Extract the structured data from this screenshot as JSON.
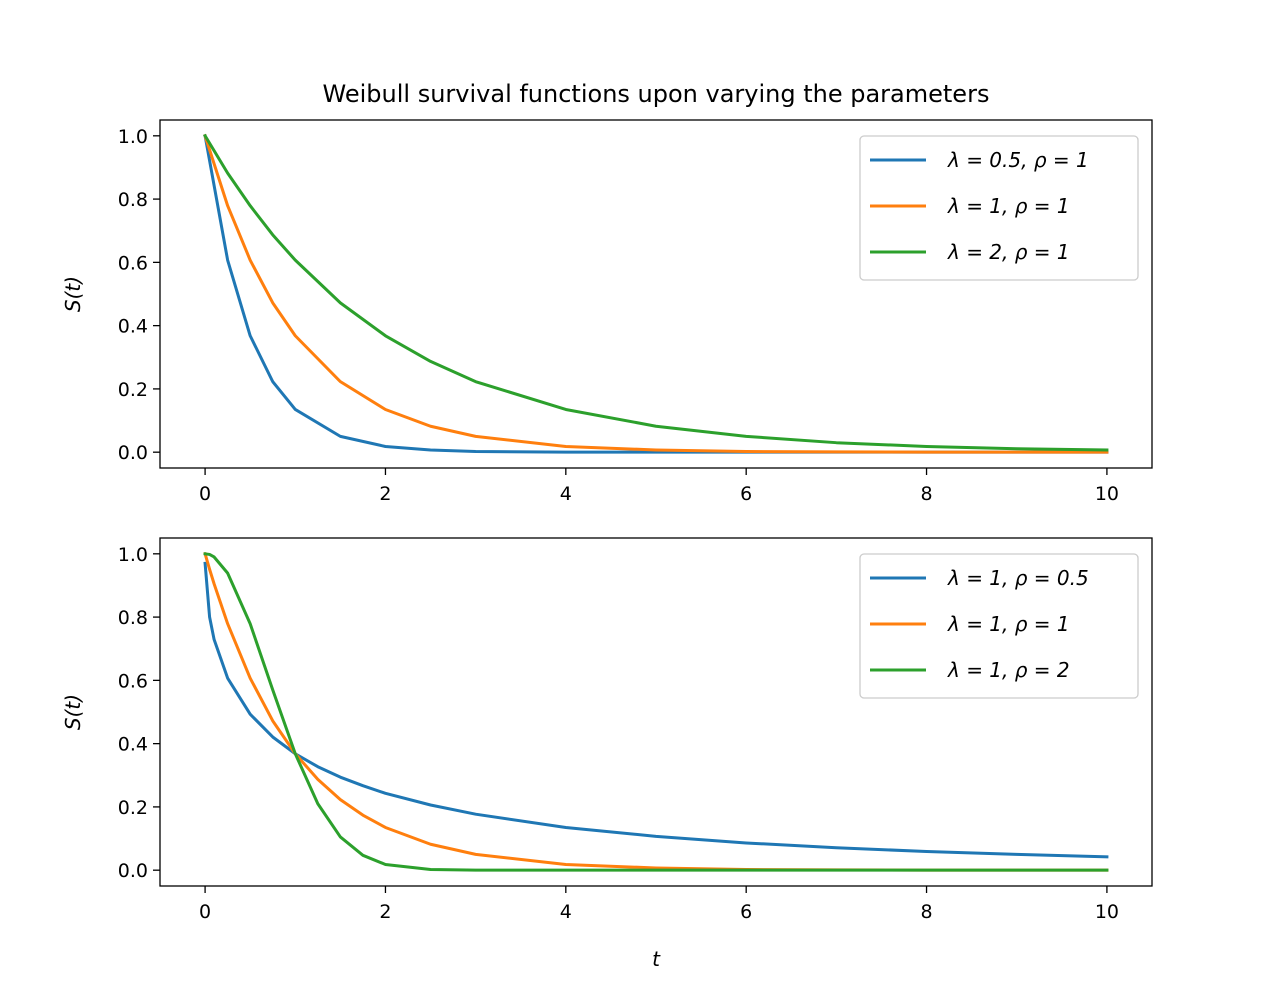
{
  "chart_data": [
    {
      "type": "line",
      "title": "Weibull survival functions upon varying the parameters",
      "xlabel": "",
      "ylabel": "S(t)",
      "xlim": [
        -0.5,
        10.5
      ],
      "ylim": [
        -0.05,
        1.05
      ],
      "xticks": [
        0,
        2,
        4,
        6,
        8,
        10
      ],
      "xtick_labels": [
        "0",
        "2",
        "4",
        "6",
        "8",
        "10"
      ],
      "yticks": [
        0.0,
        0.2,
        0.4,
        0.6,
        0.8,
        1.0
      ],
      "ytick_labels": [
        "0.0",
        "0.2",
        "0.4",
        "0.6",
        "0.8",
        "1.0"
      ],
      "grid": false,
      "legend_position": "top-right",
      "x": [
        0,
        0.25,
        0.5,
        0.75,
        1,
        1.5,
        2,
        2.5,
        3,
        4,
        5,
        6,
        7,
        8,
        9,
        10
      ],
      "series": [
        {
          "name": "λ = 0.5, ρ = 1",
          "color": "#1f77b4",
          "values": [
            1.0,
            0.607,
            0.368,
            0.223,
            0.135,
            0.05,
            0.018,
            0.007,
            0.002,
            0.0003,
            0.0,
            0.0,
            0.0,
            0.0,
            0.0,
            0.0
          ]
        },
        {
          "name": "λ = 1, ρ = 1",
          "color": "#ff7f0e",
          "values": [
            1.0,
            0.779,
            0.607,
            0.472,
            0.368,
            0.223,
            0.135,
            0.082,
            0.05,
            0.018,
            0.007,
            0.002,
            0.001,
            0.0003,
            0.0001,
            0.0
          ]
        },
        {
          "name": "λ = 2, ρ = 1",
          "color": "#2ca02c",
          "values": [
            1.0,
            0.882,
            0.779,
            0.687,
            0.607,
            0.472,
            0.368,
            0.287,
            0.223,
            0.135,
            0.082,
            0.05,
            0.03,
            0.018,
            0.011,
            0.007
          ]
        }
      ]
    },
    {
      "type": "line",
      "title": "",
      "xlabel": "t",
      "ylabel": "S(t)",
      "xlim": [
        -0.5,
        10.5
      ],
      "ylim": [
        -0.05,
        1.05
      ],
      "xticks": [
        0,
        2,
        4,
        6,
        8,
        10
      ],
      "xtick_labels": [
        "0",
        "2",
        "4",
        "6",
        "8",
        "10"
      ],
      "yticks": [
        0.0,
        0.2,
        0.4,
        0.6,
        0.8,
        1.0
      ],
      "ytick_labels": [
        "0.0",
        "0.2",
        "0.4",
        "0.6",
        "0.8",
        "1.0"
      ],
      "grid": false,
      "legend_position": "top-right",
      "x": [
        0,
        0.05,
        0.1,
        0.25,
        0.5,
        0.75,
        1,
        1.25,
        1.5,
        1.75,
        2,
        2.5,
        3,
        4,
        5,
        6,
        7,
        8,
        9,
        10
      ],
      "series": [
        {
          "name": "λ = 1, ρ = 0.5",
          "color": "#1f77b4",
          "values": [
            0.97,
            0.8,
            0.729,
            0.607,
            0.493,
            0.421,
            0.368,
            0.327,
            0.294,
            0.267,
            0.243,
            0.206,
            0.177,
            0.135,
            0.107,
            0.086,
            0.071,
            0.059,
            0.05,
            0.042
          ]
        },
        {
          "name": "λ = 1, ρ = 1",
          "color": "#ff7f0e",
          "values": [
            1.0,
            0.951,
            0.905,
            0.779,
            0.607,
            0.472,
            0.368,
            0.287,
            0.223,
            0.174,
            0.135,
            0.082,
            0.05,
            0.018,
            0.007,
            0.002,
            0.001,
            0.0003,
            0.0001,
            0.0
          ]
        },
        {
          "name": "λ = 1, ρ = 2",
          "color": "#2ca02c",
          "values": [
            1.0,
            0.998,
            0.99,
            0.939,
            0.779,
            0.57,
            0.368,
            0.21,
            0.105,
            0.047,
            0.018,
            0.002,
            0.0001,
            0.0,
            0.0,
            0.0,
            0.0,
            0.0,
            0.0,
            0.0
          ]
        }
      ]
    }
  ]
}
